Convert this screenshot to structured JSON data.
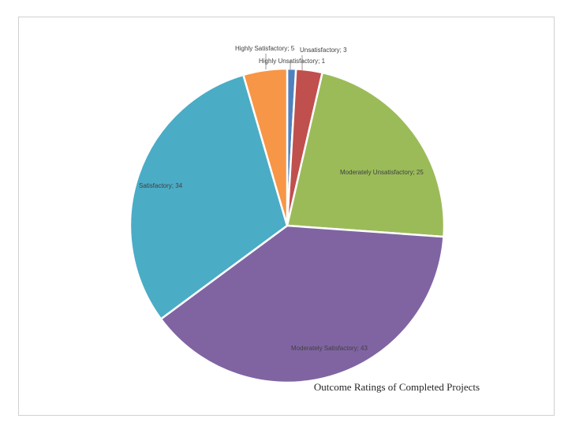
{
  "chart_data": {
    "type": "pie",
    "title": "Outcome Ratings of Completed Projects",
    "slices": [
      {
        "label": "Highly Unsatisfactory",
        "value": 1,
        "data_label": "Highly Unsatisfactory; 1",
        "color": "#4f81bd"
      },
      {
        "label": "Unsatisfactory",
        "value": 3,
        "data_label": "Unsatisfactory; 3",
        "color": "#c0504d"
      },
      {
        "label": "Moderately Unsatisfactory",
        "value": 25,
        "data_label": "Moderately Unsatisfactory; 25",
        "color": "#9bbb59"
      },
      {
        "label": "Moderately Satisfactory",
        "value": 43,
        "data_label": "Moderately Satisfactory; 43",
        "color": "#8064a2"
      },
      {
        "label": "Satisfactory",
        "value": 34,
        "data_label": "Satisfactory; 34",
        "color": "#4bacc6"
      },
      {
        "label": "Highly Satisfactory",
        "value": 5,
        "data_label": "Highly Satisfactory; 5",
        "color": "#f79646"
      }
    ],
    "legend": "none"
  }
}
